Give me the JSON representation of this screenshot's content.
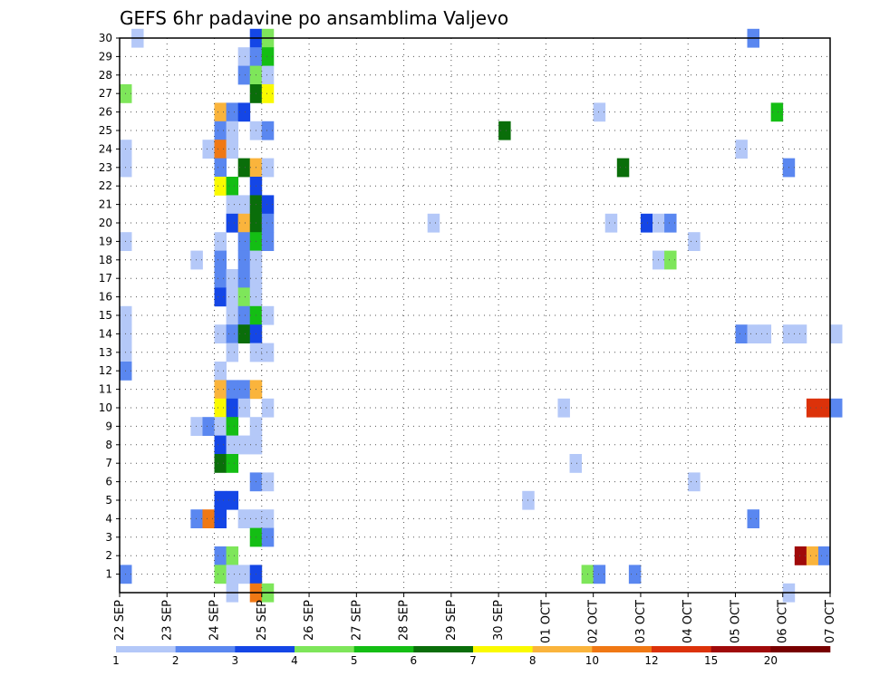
{
  "chart_data": {
    "type": "heatmap",
    "title": "GEFS 6hr padavine po ansamblima Valjevo",
    "x_tick_labels": [
      "22 SEP",
      "23 SEP",
      "24 SEP",
      "25 SEP",
      "26 SEP",
      "27 SEP",
      "28 SEP",
      "29 SEP",
      "30 SEP",
      "01 OCT",
      "02 OCT",
      "03 OCT",
      "04 OCT",
      "05 OCT",
      "06 OCT",
      "07 OCT"
    ],
    "x_range_days": [
      0,
      15
    ],
    "y_tick_labels": [
      "1",
      "2",
      "3",
      "4",
      "5",
      "6",
      "7",
      "8",
      "9",
      "10",
      "11",
      "12",
      "13",
      "14",
      "15",
      "16",
      "17",
      "18",
      "19",
      "20",
      "21",
      "22",
      "23",
      "24",
      "25",
      "26",
      "27",
      "28",
      "29",
      "30"
    ],
    "y_range": [
      0,
      30
    ],
    "grid": true,
    "colorbar": {
      "tick_labels": [
        "1",
        "2",
        "3",
        "4",
        "5",
        "6",
        "7",
        "8",
        "10",
        "12",
        "15",
        "20"
      ],
      "colors": [
        "#b4c8f8",
        "#5a87f0",
        "#1446e6",
        "#7ee65a",
        "#14be14",
        "#0a6e0a",
        "#fafa00",
        "#fab43c",
        "#f07814",
        "#dc320a",
        "#a00a0a",
        "#780000"
      ]
    },
    "cells": [
      [
        0,
        0.25,
        30
      ],
      [
        2,
        2.75,
        30
      ],
      [
        3,
        3.0,
        30
      ],
      [
        1,
        13.25,
        30
      ],
      [
        0,
        2.5,
        29
      ],
      [
        1,
        2.75,
        29
      ],
      [
        4,
        3.0,
        29
      ],
      [
        1,
        2.5,
        28
      ],
      [
        3,
        2.75,
        28
      ],
      [
        0,
        3.0,
        28
      ],
      [
        3,
        0.0,
        27
      ],
      [
        5,
        2.75,
        27
      ],
      [
        6,
        3.0,
        27
      ],
      [
        7,
        2.0,
        26
      ],
      [
        1,
        2.25,
        26
      ],
      [
        2,
        2.5,
        26
      ],
      [
        0,
        10.0,
        26
      ],
      [
        4,
        13.75,
        26
      ],
      [
        1,
        2.0,
        25
      ],
      [
        0,
        2.25,
        25
      ],
      [
        0,
        2.75,
        25
      ],
      [
        1,
        3.0,
        25
      ],
      [
        5,
        8.0,
        25
      ],
      [
        0,
        0.0,
        24
      ],
      [
        0,
        1.75,
        24
      ],
      [
        8,
        2.0,
        24
      ],
      [
        0,
        2.25,
        24
      ],
      [
        0,
        13.0,
        24
      ],
      [
        0,
        0.0,
        23
      ],
      [
        1,
        2.0,
        23
      ],
      [
        5,
        2.5,
        23
      ],
      [
        7,
        2.75,
        23
      ],
      [
        0,
        3.0,
        23
      ],
      [
        5,
        10.5,
        23
      ],
      [
        1,
        14.0,
        23
      ],
      [
        6,
        2.0,
        22
      ],
      [
        4,
        2.25,
        22
      ],
      [
        2,
        2.75,
        22
      ],
      [
        0,
        2.25,
        21
      ],
      [
        0,
        2.5,
        21
      ],
      [
        5,
        2.75,
        21
      ],
      [
        2,
        3.0,
        21
      ],
      [
        2,
        2.25,
        20
      ],
      [
        7,
        2.5,
        20
      ],
      [
        5,
        2.75,
        20
      ],
      [
        1,
        3.0,
        20
      ],
      [
        0,
        6.5,
        20
      ],
      [
        0,
        10.25,
        20
      ],
      [
        2,
        11.0,
        20
      ],
      [
        0,
        11.25,
        20
      ],
      [
        1,
        11.5,
        20
      ],
      [
        0,
        0.0,
        19
      ],
      [
        0,
        2.0,
        19
      ],
      [
        1,
        2.5,
        19
      ],
      [
        4,
        2.75,
        19
      ],
      [
        1,
        3.0,
        19
      ],
      [
        0,
        12.0,
        19
      ],
      [
        0,
        1.5,
        18
      ],
      [
        1,
        2.0,
        18
      ],
      [
        1,
        2.5,
        18
      ],
      [
        0,
        2.75,
        18
      ],
      [
        0,
        11.25,
        18
      ],
      [
        3,
        11.5,
        18
      ],
      [
        1,
        2.0,
        17
      ],
      [
        0,
        2.25,
        17
      ],
      [
        1,
        2.5,
        17
      ],
      [
        0,
        2.75,
        17
      ],
      [
        2,
        2.0,
        16
      ],
      [
        0,
        2.25,
        16
      ],
      [
        3,
        2.5,
        16
      ],
      [
        0,
        2.75,
        16
      ],
      [
        0,
        0.0,
        15
      ],
      [
        0,
        2.25,
        15
      ],
      [
        1,
        2.5,
        15
      ],
      [
        4,
        2.75,
        15
      ],
      [
        0,
        3.0,
        15
      ],
      [
        0,
        0.0,
        14
      ],
      [
        0,
        2.0,
        14
      ],
      [
        1,
        2.25,
        14
      ],
      [
        5,
        2.5,
        14
      ],
      [
        2,
        2.75,
        14
      ],
      [
        1,
        13.0,
        14
      ],
      [
        0,
        13.25,
        14
      ],
      [
        0,
        13.5,
        14
      ],
      [
        0,
        14.0,
        14
      ],
      [
        0,
        14.25,
        14
      ],
      [
        0,
        15.0,
        14
      ],
      [
        0,
        0.0,
        13
      ],
      [
        0,
        2.25,
        13
      ],
      [
        0,
        2.75,
        13
      ],
      [
        0,
        3.0,
        13
      ],
      [
        1,
        0.0,
        12
      ],
      [
        0,
        2.0,
        12
      ],
      [
        7,
        2.0,
        11
      ],
      [
        1,
        2.25,
        11
      ],
      [
        1,
        2.5,
        11
      ],
      [
        7,
        2.75,
        11
      ],
      [
        6,
        2.0,
        10
      ],
      [
        2,
        2.25,
        10
      ],
      [
        0,
        2.5,
        10
      ],
      [
        0,
        3.0,
        10
      ],
      [
        0,
        9.25,
        10
      ],
      [
        9,
        14.5,
        10
      ],
      [
        9,
        14.75,
        10
      ],
      [
        1,
        15.0,
        10
      ],
      [
        0,
        1.5,
        9
      ],
      [
        1,
        1.75,
        9
      ],
      [
        0,
        2.0,
        9
      ],
      [
        4,
        2.25,
        9
      ],
      [
        0,
        2.75,
        9
      ],
      [
        2,
        2.0,
        8
      ],
      [
        0,
        2.25,
        8
      ],
      [
        0,
        2.5,
        8
      ],
      [
        0,
        2.75,
        8
      ],
      [
        5,
        2.0,
        7
      ],
      [
        4,
        2.25,
        7
      ],
      [
        0,
        9.5,
        7
      ],
      [
        1,
        2.75,
        6
      ],
      [
        0,
        3.0,
        6
      ],
      [
        0,
        12.0,
        6
      ],
      [
        2,
        2.0,
        5
      ],
      [
        2,
        2.25,
        5
      ],
      [
        0,
        8.5,
        5
      ],
      [
        1,
        1.5,
        4
      ],
      [
        8,
        1.75,
        4
      ],
      [
        2,
        2.0,
        4
      ],
      [
        0,
        2.5,
        4
      ],
      [
        0,
        2.75,
        4
      ],
      [
        0,
        3.0,
        4
      ],
      [
        1,
        13.25,
        4
      ],
      [
        4,
        2.75,
        3
      ],
      [
        1,
        3.0,
        3
      ],
      [
        1,
        2.0,
        2
      ],
      [
        3,
        2.25,
        2
      ],
      [
        10,
        14.25,
        2
      ],
      [
        7,
        14.5,
        2
      ],
      [
        1,
        14.75,
        2
      ],
      [
        1,
        0.0,
        1
      ],
      [
        3,
        2.0,
        1
      ],
      [
        0,
        2.25,
        1
      ],
      [
        0,
        2.5,
        1
      ],
      [
        2,
        2.75,
        1
      ],
      [
        3,
        9.75,
        1
      ],
      [
        1,
        10.0,
        1
      ],
      [
        1,
        10.75,
        1
      ],
      [
        0,
        2.25,
        0
      ],
      [
        8,
        2.75,
        0
      ],
      [
        3,
        3.0,
        0
      ],
      [
        0,
        14.0,
        0
      ]
    ]
  }
}
